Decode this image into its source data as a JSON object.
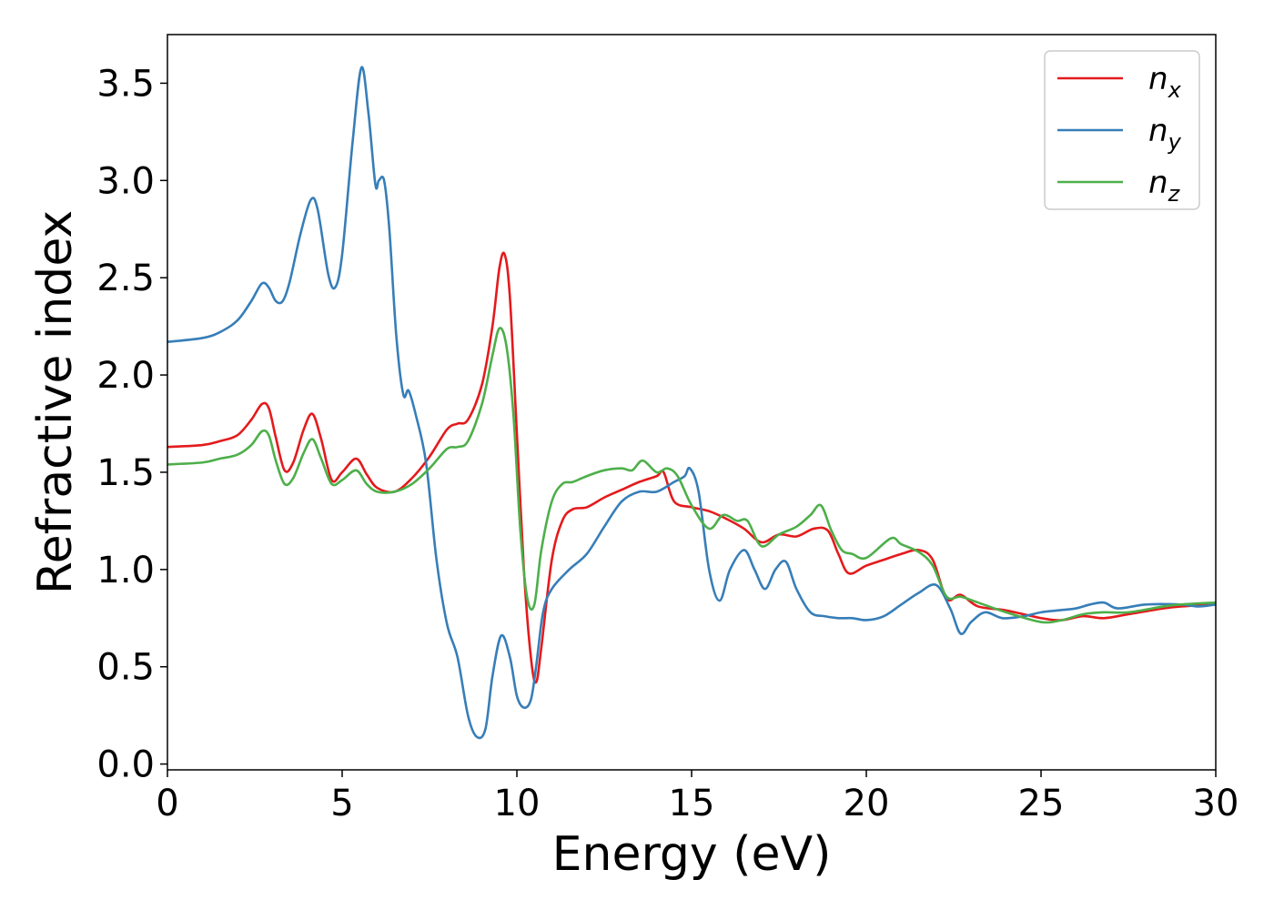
{
  "chart_data": {
    "type": "line",
    "title": "",
    "xlabel": "Energy (eV)",
    "ylabel": "Refractive index",
    "xlim": [
      0,
      30
    ],
    "ylim": [
      -0.03,
      3.75
    ],
    "xticks": [
      0,
      5,
      10,
      15,
      20,
      25,
      30
    ],
    "xtick_labels": [
      "0",
      "5",
      "10",
      "15",
      "20",
      "25",
      "30"
    ],
    "yticks": [
      0.0,
      0.5,
      1.0,
      1.5,
      2.0,
      2.5,
      3.0,
      3.5
    ],
    "ytick_labels": [
      "0.0",
      "0.5",
      "1.0",
      "1.5",
      "2.0",
      "2.5",
      "3.0",
      "3.5"
    ],
    "grid": false,
    "legend_position": "top-right",
    "series": [
      {
        "name": "n_x",
        "label_main": "n",
        "label_sub": "x",
        "color": "#e41a1c",
        "x": [
          0,
          1,
          1.5,
          2.0,
          2.4,
          2.7,
          2.9,
          3.1,
          3.35,
          3.6,
          3.9,
          4.15,
          4.4,
          4.7,
          5.0,
          5.4,
          5.7,
          6.0,
          6.5,
          7.0,
          7.5,
          8.0,
          8.3,
          8.6,
          9.0,
          9.3,
          9.5,
          9.65,
          9.8,
          10.0,
          10.2,
          10.4,
          10.55,
          10.7,
          11.0,
          11.3,
          11.6,
          12.0,
          12.5,
          13.0,
          13.5,
          14.0,
          14.2,
          14.5,
          15.0,
          15.5,
          16.0,
          16.5,
          17.0,
          17.5,
          18.0,
          18.5,
          18.9,
          19.2,
          19.5,
          20.0,
          20.5,
          21.0,
          21.5,
          21.9,
          22.3,
          22.7,
          23.2,
          24.0,
          25.0,
          25.6,
          26.2,
          26.8,
          27.5,
          28.5,
          29.0,
          30.0
        ],
        "y": [
          1.63,
          1.64,
          1.66,
          1.69,
          1.77,
          1.85,
          1.83,
          1.68,
          1.51,
          1.55,
          1.72,
          1.8,
          1.67,
          1.46,
          1.5,
          1.57,
          1.49,
          1.42,
          1.4,
          1.47,
          1.58,
          1.72,
          1.75,
          1.77,
          1.95,
          2.25,
          2.55,
          2.62,
          2.4,
          1.7,
          1.0,
          0.55,
          0.42,
          0.6,
          1.05,
          1.25,
          1.31,
          1.32,
          1.37,
          1.41,
          1.45,
          1.48,
          1.5,
          1.35,
          1.32,
          1.3,
          1.26,
          1.21,
          1.14,
          1.18,
          1.17,
          1.21,
          1.2,
          1.08,
          0.98,
          1.02,
          1.05,
          1.08,
          1.1,
          1.05,
          0.85,
          0.87,
          0.81,
          0.79,
          0.75,
          0.74,
          0.76,
          0.75,
          0.77,
          0.8,
          0.81,
          0.82
        ]
      },
      {
        "name": "n_y",
        "label_main": "n",
        "label_sub": "y",
        "color": "#377eb8",
        "x": [
          0,
          1,
          1.5,
          2.0,
          2.4,
          2.7,
          2.9,
          3.1,
          3.3,
          3.5,
          3.8,
          4.1,
          4.3,
          4.6,
          4.8,
          5.0,
          5.3,
          5.55,
          5.75,
          5.95,
          6.05,
          6.2,
          6.35,
          6.55,
          6.75,
          6.9,
          7.1,
          7.4,
          7.7,
          8.0,
          8.3,
          8.6,
          8.85,
          9.1,
          9.3,
          9.55,
          9.8,
          10.0,
          10.2,
          10.4,
          10.55,
          10.75,
          11.0,
          11.5,
          12.0,
          12.5,
          13.0,
          13.5,
          14.0,
          14.5,
          14.8,
          14.95,
          15.2,
          15.5,
          15.8,
          16.1,
          16.5,
          16.8,
          17.1,
          17.4,
          17.7,
          18.0,
          18.4,
          18.8,
          19.2,
          19.6,
          20.0,
          20.5,
          21.0,
          21.5,
          22.0,
          22.4,
          22.7,
          23.0,
          23.4,
          23.9,
          24.5,
          25.0,
          25.5,
          26.0,
          26.4,
          26.8,
          27.2,
          28.0,
          29.0,
          29.5,
          30.0
        ],
        "y": [
          2.17,
          2.19,
          2.22,
          2.28,
          2.38,
          2.47,
          2.45,
          2.38,
          2.38,
          2.48,
          2.72,
          2.9,
          2.85,
          2.52,
          2.45,
          2.62,
          3.2,
          3.58,
          3.35,
          2.98,
          3.0,
          3.0,
          2.75,
          2.2,
          1.9,
          1.92,
          1.8,
          1.55,
          1.05,
          0.72,
          0.55,
          0.25,
          0.14,
          0.18,
          0.45,
          0.66,
          0.55,
          0.35,
          0.29,
          0.33,
          0.5,
          0.78,
          0.9,
          1.0,
          1.08,
          1.22,
          1.35,
          1.4,
          1.4,
          1.45,
          1.48,
          1.52,
          1.4,
          1.0,
          0.84,
          1.0,
          1.1,
          1.0,
          0.9,
          1.0,
          1.04,
          0.9,
          0.78,
          0.76,
          0.75,
          0.75,
          0.74,
          0.76,
          0.82,
          0.88,
          0.92,
          0.8,
          0.67,
          0.73,
          0.78,
          0.75,
          0.76,
          0.78,
          0.79,
          0.8,
          0.82,
          0.83,
          0.8,
          0.82,
          0.82,
          0.81,
          0.82
        ]
      },
      {
        "name": "n_z",
        "label_main": "n",
        "label_sub": "z",
        "color": "#4daf4a",
        "x": [
          0,
          1,
          1.5,
          2.0,
          2.4,
          2.7,
          2.9,
          3.1,
          3.35,
          3.6,
          3.9,
          4.15,
          4.4,
          4.7,
          5.0,
          5.4,
          5.7,
          6.0,
          6.5,
          7.0,
          7.5,
          8.0,
          8.3,
          8.6,
          9.0,
          9.3,
          9.5,
          9.7,
          9.9,
          10.1,
          10.3,
          10.5,
          10.7,
          11.0,
          11.3,
          11.6,
          12.0,
          12.5,
          13.0,
          13.3,
          13.6,
          14.0,
          14.3,
          14.6,
          15.0,
          15.5,
          15.9,
          16.3,
          16.6,
          17.0,
          17.5,
          18.0,
          18.4,
          18.7,
          19.0,
          19.3,
          19.6,
          20.0,
          20.7,
          21.0,
          21.5,
          21.9,
          22.3,
          22.7,
          23.2,
          24.0,
          25.0,
          25.6,
          26.2,
          26.8,
          27.5,
          28.5,
          29.0,
          30.0
        ],
        "y": [
          1.54,
          1.55,
          1.57,
          1.59,
          1.64,
          1.71,
          1.69,
          1.56,
          1.44,
          1.47,
          1.6,
          1.67,
          1.57,
          1.44,
          1.46,
          1.51,
          1.44,
          1.4,
          1.4,
          1.44,
          1.52,
          1.62,
          1.63,
          1.66,
          1.85,
          2.1,
          2.24,
          2.15,
          1.8,
          1.2,
          0.85,
          0.82,
          1.1,
          1.35,
          1.44,
          1.45,
          1.48,
          1.51,
          1.52,
          1.51,
          1.56,
          1.5,
          1.52,
          1.48,
          1.33,
          1.21,
          1.28,
          1.25,
          1.25,
          1.12,
          1.18,
          1.22,
          1.28,
          1.33,
          1.2,
          1.1,
          1.08,
          1.06,
          1.16,
          1.13,
          1.09,
          1.02,
          0.86,
          0.86,
          0.83,
          0.78,
          0.73,
          0.74,
          0.77,
          0.78,
          0.78,
          0.81,
          0.82,
          0.83
        ]
      }
    ]
  }
}
